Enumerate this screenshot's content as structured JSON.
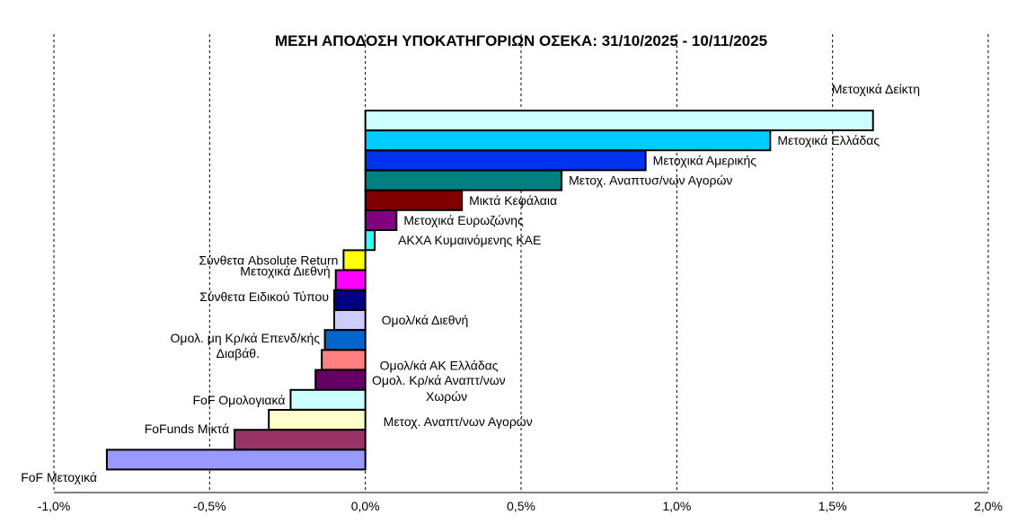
{
  "chart_data": {
    "type": "bar",
    "orientation": "horizontal",
    "title": "ΜΕΣΗ ΑΠΟΔΟΣΗ ΥΠΟΚΑΤΗΓΟΡΙΩΝ ΟΣΕΚΑ: 31/10/2025 - 10/11/2025",
    "xlabel": "",
    "ylabel": "",
    "xlim": [
      -0.01,
      0.02
    ],
    "x_ticks": [
      "-1,0%",
      "-0,5%",
      "0,0%",
      "0,5%",
      "1,0%",
      "1,5%",
      "2,0%"
    ],
    "grid": "vertical dashed",
    "legend": "none",
    "categories": [
      "Μετοχικά Δείκτη",
      "Μετοχικά Ελλάδας",
      "Μετοχικά Αμερικής",
      "Μετοχ. Αναπτυσ/νων Αγορών",
      "Μικτά Κεφάλαια",
      "Μετοχικά Ευρωζώνης",
      "ΑΚΧΑ Κυμαινόμενης ΚΑΕ",
      "Σύνθετα Absolute Return",
      "Μετοχικά Διεθνή",
      "Σύνθετα Ειδικού Τύπου",
      "Ομολ/κά Διεθνή",
      "Ομολ. μη Κρ/κά Επενδ/κής Διαβάθ.",
      "Ομολ/κά ΑΚ Ελλάδας",
      "Ομολ. Κρ/κά Αναπτ/νων Χωρών",
      "FoF Ομολογιακά",
      "Μετοχ. Αναπτ/νων Αγορών",
      "FoFunds Μικτά",
      "FoF Μετοχικά"
    ],
    "values": [
      0.0163,
      0.013,
      0.009,
      0.0063,
      0.0031,
      0.001,
      0.0003,
      -0.0007,
      -0.00095,
      -0.001,
      -0.001,
      -0.0013,
      -0.0014,
      -0.0016,
      -0.0024,
      -0.0031,
      -0.0042,
      -0.0083
    ],
    "colors": [
      "#ccffff",
      "#00ccff",
      "#0033ee",
      "#008080",
      "#800000",
      "#800080",
      "#33ffff",
      "#ffff00",
      "#ff00ff",
      "#000080",
      "#ccccff",
      "#0066cc",
      "#ff8080",
      "#660066",
      "#ccffff",
      "#ffffcc",
      "#993366",
      "#9999ff"
    ]
  }
}
